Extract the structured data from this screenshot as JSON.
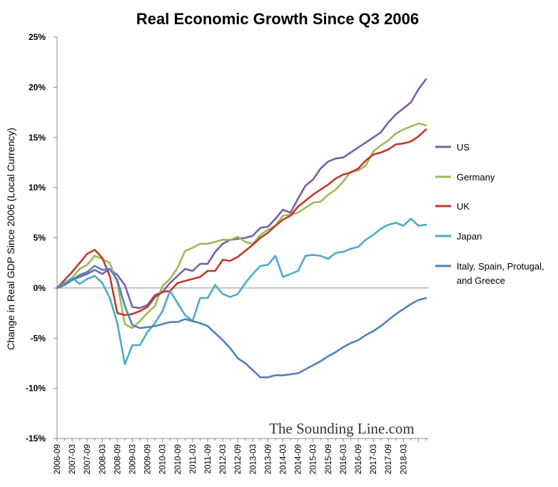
{
  "chart_data": {
    "type": "line",
    "title": "Real Economic Growth Since Q3 2006",
    "ylabel": "Change in Real GDP Since 2006 (Local Currency)",
    "xlabel": "",
    "ylim": [
      -15,
      25
    ],
    "ytick_values": [
      25,
      20,
      15,
      10,
      5,
      0,
      -5,
      -10,
      -15
    ],
    "ytick_labels": [
      "25%",
      "20%",
      "15%",
      "10%",
      "5%",
      "0%",
      "-5%",
      "-10%",
      "-15%"
    ],
    "xtick_labels": [
      "2006-09",
      "2007-03",
      "2007-09",
      "2008-03",
      "2008-09",
      "2009-03",
      "2009-09",
      "2010-03",
      "2010-09",
      "2011-03",
      "2011-09",
      "2012-03",
      "2012-09",
      "2013-03",
      "2013-09",
      "2014-03",
      "2014-09",
      "2015-03",
      "2015-09",
      "2016-03",
      "2016-09",
      "2017-03",
      "2017-09",
      "2018-03"
    ],
    "n_points": 50,
    "series": [
      {
        "name": "US",
        "color": "#7B5FA3",
        "values": [
          0,
          0.3,
          0.8,
          1.1,
          1.4,
          1.8,
          1.4,
          1.9,
          1.3,
          0.3,
          -1.9,
          -2.0,
          -1.7,
          -0.7,
          -0.4,
          0.5,
          1.2,
          1.9,
          1.7,
          2.4,
          2.4,
          3.6,
          4.4,
          4.8,
          4.9,
          5.0,
          5.2,
          6.0,
          6.1,
          6.9,
          7.8,
          7.5,
          8.9,
          10.2,
          10.8,
          11.9,
          12.6,
          12.9,
          13.0,
          13.5,
          14.0,
          14.5,
          15.0,
          15.5,
          16.5,
          17.3,
          17.9,
          18.5,
          19.8,
          20.8
        ]
      },
      {
        "name": "Germany",
        "color": "#9BBB59",
        "values": [
          0,
          0.5,
          1.0,
          1.9,
          2.3,
          3.2,
          2.9,
          2.5,
          0.5,
          -3.6,
          -4.0,
          -3.3,
          -2.5,
          -1.8,
          0.2,
          0.9,
          2.0,
          3.7,
          4.0,
          4.4,
          4.4,
          4.6,
          4.8,
          4.8,
          5.1,
          4.6,
          4.4,
          5.3,
          5.8,
          6.2,
          7.2,
          7.3,
          7.5,
          8.0,
          8.5,
          8.6,
          9.3,
          9.8,
          10.6,
          11.6,
          11.7,
          12.2,
          13.6,
          14.2,
          14.7,
          15.4,
          15.8,
          16.1,
          16.4,
          16.2
        ]
      },
      {
        "name": "UK",
        "color": "#C0392B",
        "values": [
          0,
          0.8,
          1.6,
          2.5,
          3.4,
          3.8,
          3.0,
          1.2,
          -2.5,
          -2.7,
          -2.6,
          -2.3,
          -1.9,
          -0.9,
          -0.4,
          -0.3,
          0.5,
          0.7,
          0.9,
          1.1,
          1.7,
          1.7,
          2.8,
          2.7,
          3.1,
          3.7,
          4.3,
          5.0,
          5.5,
          6.2,
          6.8,
          7.2,
          8.1,
          8.7,
          9.3,
          9.8,
          10.3,
          10.9,
          11.3,
          11.5,
          11.9,
          12.7,
          13.3,
          13.5,
          13.8,
          14.3,
          14.4,
          14.6,
          15.1,
          15.8
        ]
      },
      {
        "name": "Japan",
        "color": "#4BACC6",
        "values": [
          0,
          0.5,
          1.0,
          0.4,
          0.9,
          1.2,
          0.5,
          -1.0,
          -3.5,
          -7.6,
          -5.7,
          -5.7,
          -4.4,
          -3.5,
          -2.3,
          -0.3,
          -1.5,
          -2.7,
          -3.3,
          -1.0,
          -1.0,
          0.3,
          -0.6,
          -0.9,
          -0.6,
          0.5,
          1.4,
          2.2,
          2.3,
          3.2,
          1.1,
          1.4,
          1.7,
          3.2,
          3.3,
          3.2,
          2.9,
          3.5,
          3.6,
          3.9,
          4.1,
          4.8,
          5.3,
          5.9,
          6.3,
          6.5,
          6.2,
          6.9,
          6.2,
          6.3
        ]
      },
      {
        "name": "Italy, Spain, Protugal, and Greece",
        "color": "#4F81BD",
        "values": [
          0,
          0.3,
          0.8,
          1.3,
          1.6,
          2.2,
          1.8,
          1.9,
          0.8,
          -1.8,
          -3.7,
          -4.0,
          -3.9,
          -3.8,
          -3.6,
          -3.4,
          -3.4,
          -3.1,
          -3.3,
          -3.5,
          -3.8,
          -4.5,
          -5.2,
          -6.0,
          -7.0,
          -7.5,
          -8.2,
          -8.9,
          -8.9,
          -8.7,
          -8.7,
          -8.6,
          -8.5,
          -8.1,
          -7.7,
          -7.3,
          -6.8,
          -6.4,
          -5.9,
          -5.5,
          -5.2,
          -4.7,
          -4.3,
          -3.8,
          -3.2,
          -2.6,
          -2.1,
          -1.6,
          -1.2,
          -1.0
        ]
      }
    ],
    "legend_position": "right",
    "legend_lines": [
      [
        "US"
      ],
      [
        "Germany"
      ],
      [
        "UK"
      ],
      [
        "Japan"
      ],
      [
        "Italy, Spain, Protugal,",
        "and Greece"
      ]
    ],
    "watermark": "The Sounding Line.com",
    "grid": false
  }
}
